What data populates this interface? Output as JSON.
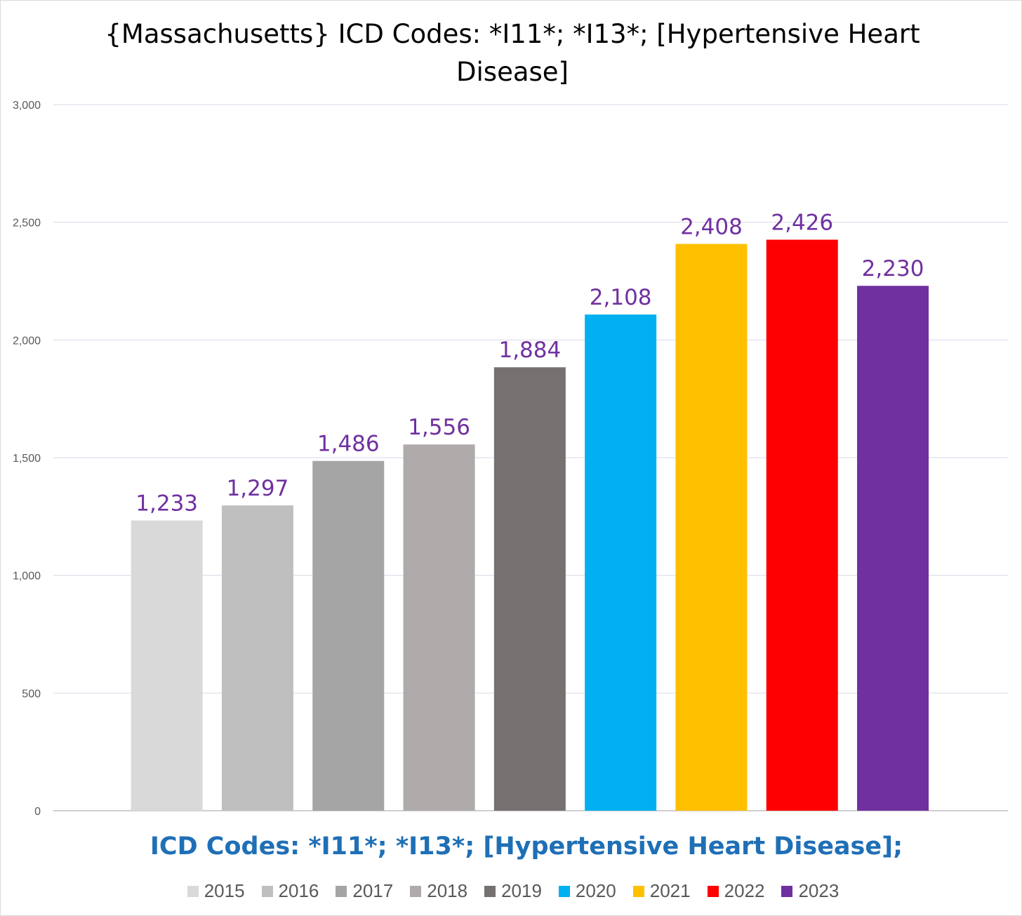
{
  "chart_data": {
    "type": "bar",
    "title": "{Massachusetts}  ICD Codes: *I11*; *I13*;  [Hypertensive Heart Disease]",
    "xlabel": "ICD Codes: *I11*; *I13*;  [Hypertensive Heart Disease];",
    "ylabel": "",
    "ylim": [
      0,
      3000
    ],
    "yticks": [
      0,
      500,
      1000,
      1500,
      2000,
      2500,
      3000
    ],
    "ytick_labels": [
      "0",
      "500",
      "1,000",
      "1,500",
      "2,000",
      "2,500",
      "3,000"
    ],
    "grid": true,
    "legend_position": "bottom",
    "categories": [
      "2015",
      "2016",
      "2017",
      "2018",
      "2019",
      "2020",
      "2021",
      "2022",
      "2023"
    ],
    "values": [
      1233,
      1297,
      1486,
      1556,
      1884,
      2108,
      2408,
      2426,
      2230
    ],
    "data_labels": [
      "1,233",
      "1,297",
      "1,486",
      "1,556",
      "1,884",
      "2,108",
      "2,408",
      "2,426",
      "2,230"
    ],
    "colors": [
      "#d9d9d9",
      "#bfbfbf",
      "#a5a5a5",
      "#afabab",
      "#767171",
      "#00b0f0",
      "#ffc000",
      "#ff0000",
      "#7030a0"
    ],
    "data_label_color": "#7030a0",
    "grid_color": "#d9d9e8",
    "axis_color": "#bfbfbf"
  }
}
